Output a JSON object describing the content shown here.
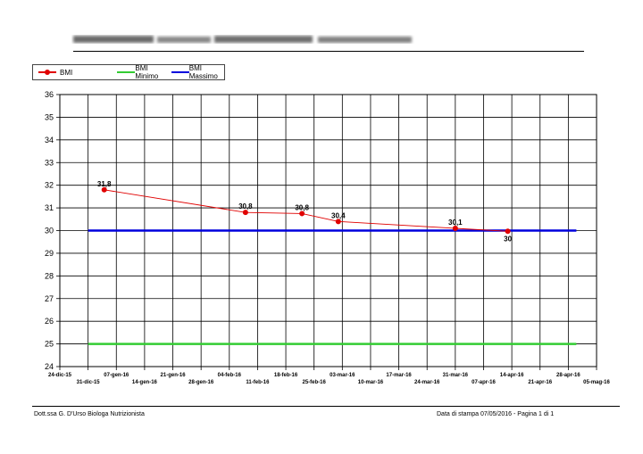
{
  "header": {
    "title_blurred": true
  },
  "legend": [
    {
      "name": "BMI",
      "color": "#e00000",
      "marker": true
    },
    {
      "name": "BMI Minimo",
      "color": "#33cc33",
      "marker": false
    },
    {
      "name": "BMI Massimo",
      "color": "#0000dd",
      "marker": false
    }
  ],
  "chart_data": {
    "type": "line",
    "title": "",
    "xlabel": "",
    "ylabel": "",
    "ylim": [
      24,
      36
    ],
    "yticks": [
      24,
      25,
      26,
      27,
      28,
      29,
      30,
      31,
      32,
      33,
      34,
      35,
      36
    ],
    "xlim": [
      "2015-12-24",
      "2016-05-05"
    ],
    "xtick_labels_top": [
      "24-dic-15",
      "07-gen-16",
      "21-gen-16",
      "04-feb-16",
      "18-feb-16",
      "03-mar-16",
      "17-mar-16",
      "31-mar-16",
      "14-apr-16",
      "28-apr-16"
    ],
    "xtick_labels_bottom": [
      "31-dic-15",
      "14-gen-16",
      "28-gen-16",
      "11-feb-16",
      "25-feb-16",
      "10-mar-16",
      "24-mar-16",
      "07-apr-16",
      "21-apr-16",
      "05-mag-16"
    ],
    "grid": true,
    "legend_position": "top-left",
    "series": [
      {
        "name": "BMI",
        "color": "#e00000",
        "points": [
          {
            "x": "2016-01-04",
            "y": 31.8,
            "label": "31,8"
          },
          {
            "x": "2016-02-08",
            "y": 30.8,
            "label": "30,8"
          },
          {
            "x": "2016-02-22",
            "y": 30.75,
            "label": "30,8"
          },
          {
            "x": "2016-03-02",
            "y": 30.4,
            "label": "30,4"
          },
          {
            "x": "2016-03-31",
            "y": 30.1,
            "label": "30,1"
          },
          {
            "x": "2016-04-13",
            "y": 29.97,
            "label": "30"
          }
        ]
      },
      {
        "name": "BMI Minimo",
        "color": "#33cc33",
        "x": [
          "2015-12-31",
          "2016-04-30"
        ],
        "y": [
          25,
          25
        ]
      },
      {
        "name": "BMI Massimo",
        "color": "#0000dd",
        "x": [
          "2015-12-31",
          "2016-04-30"
        ],
        "y": [
          30,
          30
        ]
      }
    ]
  },
  "footer": {
    "left": "Dott.ssa G. D'Urso Biologa Nutrizionista",
    "right": "Data di stampa 07/05/2016  - Pagina 1 di 1"
  }
}
